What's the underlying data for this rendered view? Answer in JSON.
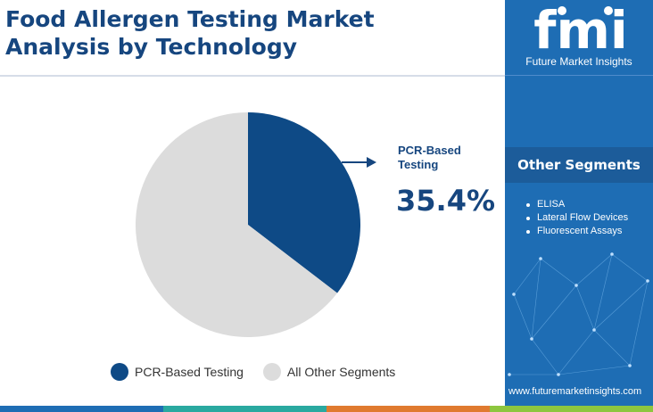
{
  "header": {
    "title_line1": "Food Allergen Testing Market",
    "title_line2": "Analysis by Technology"
  },
  "brand": {
    "logo_text": "fmi",
    "name": "Future Market Insights",
    "website": "www.futuremarketinsights.com"
  },
  "sidebar": {
    "segments_title": "Other Segments",
    "segments": [
      "ELISA",
      "Lateral Flow Devices",
      "Fluorescent Assays"
    ]
  },
  "callout": {
    "label_line1": "PCR-Based",
    "label_line2": "Testing",
    "value": "35.4%"
  },
  "chart_data": {
    "type": "pie",
    "title": "Food Allergen Testing Market Analysis by Technology",
    "slices": [
      {
        "label": "PCR-Based Testing",
        "value": 35.4,
        "color": "#0e4a86"
      },
      {
        "label": "All Other Segments",
        "value": 64.6,
        "color": "#dcdcdc"
      }
    ],
    "legend_position": "bottom"
  },
  "colors": {
    "brand_blue": "#1e6db4",
    "navy": "#0e4a86",
    "title_blue": "#16467f",
    "gray_slice": "#dcdcdc",
    "bottom_bar": [
      "#1e6db4",
      "#2aa9a0",
      "#e07a2f",
      "#8dc63f"
    ]
  }
}
